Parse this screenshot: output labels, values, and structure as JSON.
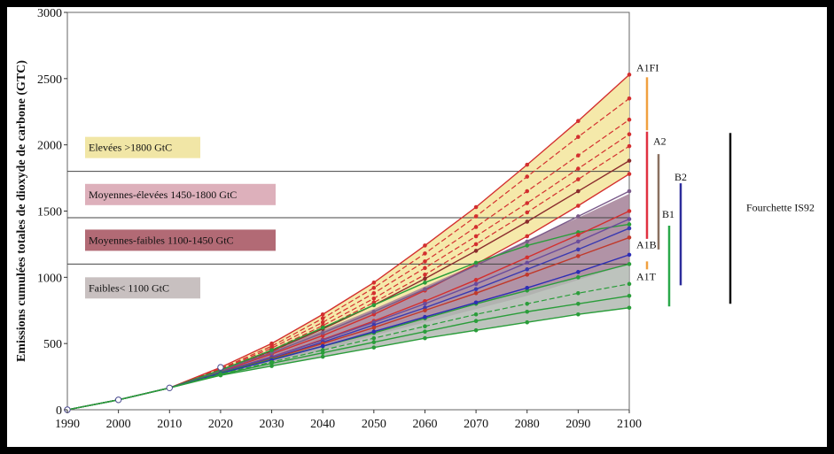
{
  "chart_data": {
    "type": "line",
    "ylabel": "Emissions cumulées totales de dioxyde de carbone (GTC)",
    "xlabel": "",
    "title": "",
    "x": [
      1990,
      2000,
      2010,
      2020,
      2030,
      2040,
      2050,
      2060,
      2070,
      2080,
      2090,
      2100
    ],
    "xlim": [
      1990,
      2100
    ],
    "ylim": [
      0,
      3000
    ],
    "xticks": [
      "1990",
      "2000",
      "2010",
      "2020",
      "2030",
      "2040",
      "2050",
      "2060",
      "2070",
      "2080",
      "2090",
      "2100"
    ],
    "yticks": [
      "0",
      "500",
      "1000",
      "1500",
      "2000",
      "2500",
      "3000"
    ],
    "thresholds": [
      1100,
      1450,
      1800
    ],
    "bands": [
      {
        "label": "Elevées >1800 GtC",
        "color": "#f4e7a1",
        "box_color": "#f1e6a6",
        "upper": [
          0,
          75,
          165,
          320,
          500,
          720,
          960,
          1240,
          1530,
          1850,
          2180,
          2530
        ],
        "lower": [
          0,
          75,
          165,
          290,
          420,
          560,
          720,
          900,
          1100,
          1310,
          1540,
          1780
        ]
      },
      {
        "label": "Moyennes-élevées 1450-1800 GtC",
        "color": "#dcaab6",
        "box_color": "#ddb0bb"
      },
      {
        "label": "Moyennes-faibles 1100-1450 GtC",
        "color": "#a9606b",
        "upper": [
          0,
          75,
          165,
          300,
          450,
          600,
          760,
          930,
          1100,
          1280,
          1450,
          1630
        ],
        "lower": [
          0,
          75,
          165,
          270,
          360,
          450,
          560,
          660,
          760,
          860,
          980,
          1100
        ],
        "box_color": "#b26a75"
      },
      {
        "label": "Faibles< 1100 GtC",
        "color": "#c4bdbd",
        "box_color": "#c8c0c0",
        "upper": [
          0,
          75,
          165,
          280,
          380,
          480,
          580,
          690,
          800,
          900,
          1000,
          1100
        ],
        "lower": [
          0,
          75,
          165,
          260,
          330,
          400,
          470,
          540,
          600,
          660,
          720,
          770
        ]
      }
    ],
    "bar_band_fill": "#a38096",
    "green_band_fill": "#b2b9b2",
    "series": [
      {
        "color": "#d32f2f",
        "dashed": false,
        "values": [
          0,
          75,
          165,
          320,
          500,
          720,
          960,
          1240,
          1530,
          1850,
          2180,
          2530
        ]
      },
      {
        "color": "#d32f2f",
        "dashed": true,
        "values": [
          0,
          75,
          165,
          310,
          480,
          690,
          920,
          1180,
          1460,
          1760,
          2060,
          2350
        ]
      },
      {
        "color": "#d32f2f",
        "dashed": true,
        "values": [
          0,
          75,
          165,
          305,
          465,
          660,
          880,
          1120,
          1380,
          1650,
          1920,
          2190
        ]
      },
      {
        "color": "#d32f2f",
        "dashed": true,
        "values": [
          0,
          75,
          165,
          300,
          450,
          635,
          840,
          1070,
          1310,
          1560,
          1820,
          2080
        ]
      },
      {
        "color": "#d32f2f",
        "dashed": true,
        "values": [
          0,
          75,
          165,
          300,
          440,
          615,
          810,
          1020,
          1250,
          1490,
          1740,
          1990
        ]
      },
      {
        "color": "#8b2c2c",
        "dashed": false,
        "values": [
          0,
          75,
          165,
          300,
          445,
          610,
          790,
          990,
          1200,
          1420,
          1650,
          1880
        ]
      },
      {
        "color": "#d32f2f",
        "dashed": false,
        "values": [
          0,
          75,
          165,
          290,
          420,
          560,
          720,
          900,
          1100,
          1310,
          1540,
          1780
        ]
      },
      {
        "color": "#7a5a8a",
        "dashed": false,
        "values": [
          0,
          75,
          165,
          295,
          430,
          580,
          740,
          910,
          1090,
          1270,
          1460,
          1650
        ]
      },
      {
        "color": "#2a9d3a",
        "dashed": false,
        "values": [
          0,
          75,
          165,
          300,
          450,
          620,
          790,
          960,
          1110,
          1240,
          1340,
          1400
        ]
      },
      {
        "color": "#d32f2f",
        "dashed": false,
        "values": [
          0,
          75,
          165,
          285,
          400,
          530,
          670,
          820,
          980,
          1150,
          1320,
          1500
        ]
      },
      {
        "color": "#6a4c9c",
        "dashed": false,
        "values": [
          0,
          75,
          165,
          285,
          400,
          525,
          660,
          800,
          950,
          1110,
          1270,
          1440
        ]
      },
      {
        "color": "#3a3ab0",
        "dashed": false,
        "values": [
          0,
          75,
          165,
          280,
          390,
          510,
          640,
          770,
          910,
          1060,
          1210,
          1370
        ]
      },
      {
        "color": "#c0392b",
        "dashed": false,
        "values": [
          0,
          75,
          165,
          280,
          385,
          500,
          620,
          750,
          880,
          1020,
          1160,
          1300
        ]
      },
      {
        "color": "#2a9d3a",
        "dashed": false,
        "values": [
          0,
          75,
          165,
          280,
          380,
          480,
          580,
          690,
          800,
          900,
          1000,
          1100
        ]
      },
      {
        "color": "#2d2db4",
        "dashed": false,
        "values": [
          0,
          75,
          165,
          275,
          375,
          480,
          590,
          700,
          810,
          920,
          1040,
          1170
        ]
      },
      {
        "color": "#2a9d3a",
        "dashed": true,
        "values": [
          0,
          75,
          165,
          270,
          360,
          450,
          540,
          630,
          720,
          800,
          880,
          950
        ]
      },
      {
        "color": "#2a9d3a",
        "dashed": false,
        "values": [
          0,
          75,
          165,
          265,
          350,
          430,
          510,
          590,
          670,
          740,
          800,
          860
        ]
      },
      {
        "color": "#2a9d3a",
        "dashed": false,
        "values": [
          0,
          75,
          165,
          260,
          330,
          400,
          470,
          540,
          600,
          660,
          720,
          770
        ]
      }
    ],
    "scenario_ranges": [
      {
        "label": "A1FI",
        "color": "#f0a040",
        "min": 2110,
        "max": 2510
      },
      {
        "label": "A2",
        "color": "#e03040",
        "min": 1290,
        "max": 2100
      },
      {
        "label": "A1B",
        "color": "#f0a040",
        "min": 1060,
        "max": 1120
      },
      {
        "label": "A1T",
        "color": "",
        "min": 0,
        "max": 0
      },
      {
        "label": "B1",
        "color": "#2aa84a",
        "min": 780,
        "max": 1390
      },
      {
        "label": "",
        "color": "#8a7060",
        "min": 1210,
        "max": 1930
      },
      {
        "label": "B2",
        "color": "#2d2d9c",
        "min": 940,
        "max": 1710
      },
      {
        "label": "Fourchette IS92",
        "color": "#111111",
        "min": 800,
        "max": 2090
      }
    ]
  }
}
